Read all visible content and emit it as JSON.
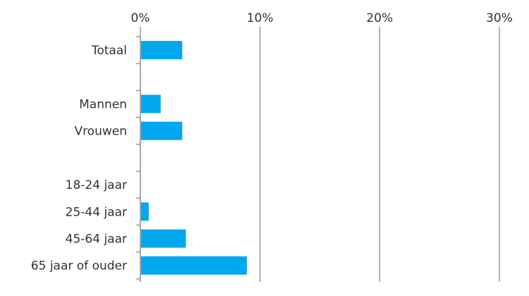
{
  "chart_data": {
    "type": "bar",
    "orientation": "horizontal",
    "title": "",
    "xlabel": "",
    "ylabel": "",
    "xlim": [
      0,
      30
    ],
    "x_ticks": [
      0,
      10,
      20,
      30
    ],
    "x_tick_labels": [
      "0%",
      "10%",
      "20%",
      "30%"
    ],
    "x_axis_position": "top",
    "grid": "vertical",
    "legend": "none",
    "bar_color": "#00a8f0",
    "categories": [
      "Totaal",
      "",
      "Mannen",
      "Vrouwen",
      "",
      "18-24 jaar",
      "25-44 jaar",
      "45-64 jaar",
      "65 jaar of ouder"
    ],
    "values": [
      3.5,
      null,
      1.7,
      3.5,
      null,
      0,
      0.7,
      3.8,
      8.9
    ],
    "unit": "%"
  }
}
